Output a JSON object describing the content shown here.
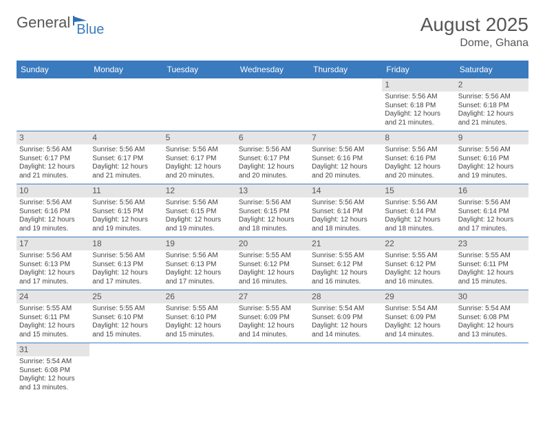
{
  "logo": {
    "part1": "General",
    "part2": "Blue"
  },
  "title": "August 2025",
  "location": "Dome, Ghana",
  "day_header_bg": "#3a7abf",
  "day_header_fg": "#ffffff",
  "daynum_bg": "#e5e5e5",
  "row_border_color": "#3a7abf",
  "text_color": "#444444",
  "days": [
    "Sunday",
    "Monday",
    "Tuesday",
    "Wednesday",
    "Thursday",
    "Friday",
    "Saturday"
  ],
  "weeks": [
    [
      {
        "n": "",
        "sr": "",
        "ss": "",
        "dl": ""
      },
      {
        "n": "",
        "sr": "",
        "ss": "",
        "dl": ""
      },
      {
        "n": "",
        "sr": "",
        "ss": "",
        "dl": ""
      },
      {
        "n": "",
        "sr": "",
        "ss": "",
        "dl": ""
      },
      {
        "n": "",
        "sr": "",
        "ss": "",
        "dl": ""
      },
      {
        "n": "1",
        "sr": "Sunrise: 5:56 AM",
        "ss": "Sunset: 6:18 PM",
        "dl": "Daylight: 12 hours and 21 minutes."
      },
      {
        "n": "2",
        "sr": "Sunrise: 5:56 AM",
        "ss": "Sunset: 6:18 PM",
        "dl": "Daylight: 12 hours and 21 minutes."
      }
    ],
    [
      {
        "n": "3",
        "sr": "Sunrise: 5:56 AM",
        "ss": "Sunset: 6:17 PM",
        "dl": "Daylight: 12 hours and 21 minutes."
      },
      {
        "n": "4",
        "sr": "Sunrise: 5:56 AM",
        "ss": "Sunset: 6:17 PM",
        "dl": "Daylight: 12 hours and 21 minutes."
      },
      {
        "n": "5",
        "sr": "Sunrise: 5:56 AM",
        "ss": "Sunset: 6:17 PM",
        "dl": "Daylight: 12 hours and 20 minutes."
      },
      {
        "n": "6",
        "sr": "Sunrise: 5:56 AM",
        "ss": "Sunset: 6:17 PM",
        "dl": "Daylight: 12 hours and 20 minutes."
      },
      {
        "n": "7",
        "sr": "Sunrise: 5:56 AM",
        "ss": "Sunset: 6:16 PM",
        "dl": "Daylight: 12 hours and 20 minutes."
      },
      {
        "n": "8",
        "sr": "Sunrise: 5:56 AM",
        "ss": "Sunset: 6:16 PM",
        "dl": "Daylight: 12 hours and 20 minutes."
      },
      {
        "n": "9",
        "sr": "Sunrise: 5:56 AM",
        "ss": "Sunset: 6:16 PM",
        "dl": "Daylight: 12 hours and 19 minutes."
      }
    ],
    [
      {
        "n": "10",
        "sr": "Sunrise: 5:56 AM",
        "ss": "Sunset: 6:16 PM",
        "dl": "Daylight: 12 hours and 19 minutes."
      },
      {
        "n": "11",
        "sr": "Sunrise: 5:56 AM",
        "ss": "Sunset: 6:15 PM",
        "dl": "Daylight: 12 hours and 19 minutes."
      },
      {
        "n": "12",
        "sr": "Sunrise: 5:56 AM",
        "ss": "Sunset: 6:15 PM",
        "dl": "Daylight: 12 hours and 19 minutes."
      },
      {
        "n": "13",
        "sr": "Sunrise: 5:56 AM",
        "ss": "Sunset: 6:15 PM",
        "dl": "Daylight: 12 hours and 18 minutes."
      },
      {
        "n": "14",
        "sr": "Sunrise: 5:56 AM",
        "ss": "Sunset: 6:14 PM",
        "dl": "Daylight: 12 hours and 18 minutes."
      },
      {
        "n": "15",
        "sr": "Sunrise: 5:56 AM",
        "ss": "Sunset: 6:14 PM",
        "dl": "Daylight: 12 hours and 18 minutes."
      },
      {
        "n": "16",
        "sr": "Sunrise: 5:56 AM",
        "ss": "Sunset: 6:14 PM",
        "dl": "Daylight: 12 hours and 17 minutes."
      }
    ],
    [
      {
        "n": "17",
        "sr": "Sunrise: 5:56 AM",
        "ss": "Sunset: 6:13 PM",
        "dl": "Daylight: 12 hours and 17 minutes."
      },
      {
        "n": "18",
        "sr": "Sunrise: 5:56 AM",
        "ss": "Sunset: 6:13 PM",
        "dl": "Daylight: 12 hours and 17 minutes."
      },
      {
        "n": "19",
        "sr": "Sunrise: 5:56 AM",
        "ss": "Sunset: 6:13 PM",
        "dl": "Daylight: 12 hours and 17 minutes."
      },
      {
        "n": "20",
        "sr": "Sunrise: 5:55 AM",
        "ss": "Sunset: 6:12 PM",
        "dl": "Daylight: 12 hours and 16 minutes."
      },
      {
        "n": "21",
        "sr": "Sunrise: 5:55 AM",
        "ss": "Sunset: 6:12 PM",
        "dl": "Daylight: 12 hours and 16 minutes."
      },
      {
        "n": "22",
        "sr": "Sunrise: 5:55 AM",
        "ss": "Sunset: 6:12 PM",
        "dl": "Daylight: 12 hours and 16 minutes."
      },
      {
        "n": "23",
        "sr": "Sunrise: 5:55 AM",
        "ss": "Sunset: 6:11 PM",
        "dl": "Daylight: 12 hours and 15 minutes."
      }
    ],
    [
      {
        "n": "24",
        "sr": "Sunrise: 5:55 AM",
        "ss": "Sunset: 6:11 PM",
        "dl": "Daylight: 12 hours and 15 minutes."
      },
      {
        "n": "25",
        "sr": "Sunrise: 5:55 AM",
        "ss": "Sunset: 6:10 PM",
        "dl": "Daylight: 12 hours and 15 minutes."
      },
      {
        "n": "26",
        "sr": "Sunrise: 5:55 AM",
        "ss": "Sunset: 6:10 PM",
        "dl": "Daylight: 12 hours and 15 minutes."
      },
      {
        "n": "27",
        "sr": "Sunrise: 5:55 AM",
        "ss": "Sunset: 6:09 PM",
        "dl": "Daylight: 12 hours and 14 minutes."
      },
      {
        "n": "28",
        "sr": "Sunrise: 5:54 AM",
        "ss": "Sunset: 6:09 PM",
        "dl": "Daylight: 12 hours and 14 minutes."
      },
      {
        "n": "29",
        "sr": "Sunrise: 5:54 AM",
        "ss": "Sunset: 6:09 PM",
        "dl": "Daylight: 12 hours and 14 minutes."
      },
      {
        "n": "30",
        "sr": "Sunrise: 5:54 AM",
        "ss": "Sunset: 6:08 PM",
        "dl": "Daylight: 12 hours and 13 minutes."
      }
    ],
    [
      {
        "n": "31",
        "sr": "Sunrise: 5:54 AM",
        "ss": "Sunset: 6:08 PM",
        "dl": "Daylight: 12 hours and 13 minutes."
      },
      {
        "n": "",
        "sr": "",
        "ss": "",
        "dl": ""
      },
      {
        "n": "",
        "sr": "",
        "ss": "",
        "dl": ""
      },
      {
        "n": "",
        "sr": "",
        "ss": "",
        "dl": ""
      },
      {
        "n": "",
        "sr": "",
        "ss": "",
        "dl": ""
      },
      {
        "n": "",
        "sr": "",
        "ss": "",
        "dl": ""
      },
      {
        "n": "",
        "sr": "",
        "ss": "",
        "dl": ""
      }
    ]
  ]
}
